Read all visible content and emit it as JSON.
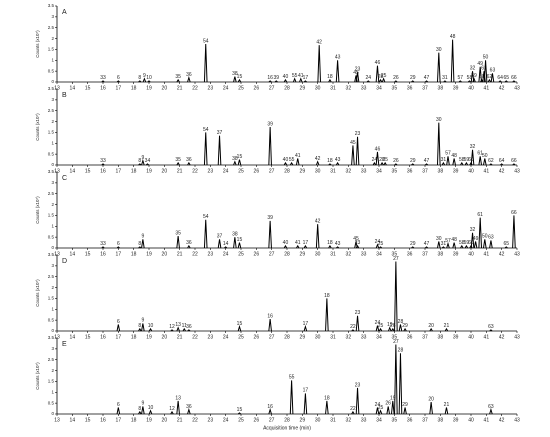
{
  "chart_data": [
    {
      "type": "chromatogram",
      "title": "A",
      "ylabel": "Counts (x10⁷)",
      "xlim": [
        13,
        43
      ],
      "xticks": [
        13,
        14,
        15,
        16,
        17,
        18,
        19,
        20,
        21,
        22,
        23,
        24,
        25,
        26,
        27,
        28,
        29,
        30,
        31,
        32,
        33,
        34,
        35,
        36,
        37,
        38,
        39,
        40,
        41,
        42,
        43
      ],
      "ylim": [
        0,
        3.5
      ],
      "yticks": [
        0,
        0.5,
        1,
        1.5,
        2,
        2.5,
        3,
        3.5
      ],
      "x": [
        16.0,
        17.0,
        18.4,
        18.7,
        19.0,
        20.9,
        21.6,
        22.7,
        24.6,
        24.9,
        26.9,
        27.3,
        27.9,
        28.5,
        28.9,
        29.2,
        30.1,
        30.8,
        31.3,
        32.5,
        32.6,
        33.3,
        33.9,
        34.1,
        34.3,
        35.1,
        36.2,
        37.1,
        37.9,
        38.3,
        38.8,
        39.3,
        39.9,
        40.1,
        40.2,
        40.6,
        40.7,
        40.85,
        40.95,
        41.2,
        41.4,
        41.9,
        42.3,
        42.8
      ],
      "values": [
        0.05,
        0.05,
        0.05,
        0.15,
        0.05,
        0.1,
        0.2,
        1.75,
        0.25,
        0.1,
        0.05,
        0.05,
        0.1,
        0.15,
        0.15,
        0.05,
        1.7,
        0.1,
        1.0,
        0.3,
        0.45,
        0.05,
        0.75,
        0.1,
        0.15,
        0.05,
        0.05,
        0.05,
        1.35,
        0.05,
        1.95,
        0.05,
        0.05,
        0.5,
        0.15,
        0.7,
        0.1,
        0.5,
        1.0,
        0.1,
        0.4,
        0.05,
        0.05,
        0.05
      ],
      "labels": [
        "33",
        "6",
        "8",
        "9",
        "10",
        "35",
        "36",
        "54",
        "38",
        "15",
        "16",
        "39",
        "40",
        "55",
        "41",
        "17",
        "42",
        "18",
        "43",
        "45",
        "23",
        "24",
        "46",
        "28",
        "25",
        "26",
        "29",
        "47",
        "30",
        "31",
        "48",
        "57",
        "58",
        "32",
        "59",
        "49",
        "60",
        "61",
        "50",
        "62",
        "63",
        "64",
        "65",
        "66"
      ]
    },
    {
      "type": "chromatogram",
      "title": "B",
      "ylabel": "Counts (x10⁷)",
      "xlim": [
        13,
        43
      ],
      "xticks": [
        13,
        14,
        15,
        16,
        17,
        18,
        19,
        20,
        21,
        22,
        23,
        24,
        25,
        26,
        27,
        28,
        29,
        30,
        31,
        32,
        33,
        34,
        35,
        36,
        37,
        38,
        39,
        40,
        41,
        42,
        43
      ],
      "ylim": [
        0,
        3.5
      ],
      "yticks": [
        0,
        0.5,
        1,
        1.5,
        2,
        2.5,
        3,
        3.5
      ],
      "x": [
        16.0,
        18.4,
        18.6,
        18.9,
        20.9,
        21.6,
        22.7,
        23.6,
        24.6,
        24.9,
        26.9,
        27.9,
        28.3,
        28.7,
        30.0,
        30.8,
        31.3,
        32.3,
        32.6,
        33.7,
        33.9,
        34.2,
        34.4,
        35.1,
        36.2,
        37.1,
        37.9,
        38.2,
        38.5,
        38.9,
        39.4,
        39.7,
        40.0,
        40.1,
        40.6,
        40.9,
        41.3,
        42.0,
        42.8
      ],
      "values": [
        0.05,
        0.05,
        0.2,
        0.05,
        0.1,
        0.1,
        1.5,
        1.35,
        0.15,
        0.25,
        1.75,
        0.1,
        0.1,
        0.3,
        0.15,
        0.05,
        0.1,
        0.9,
        1.3,
        0.1,
        0.6,
        0.1,
        0.1,
        0.05,
        0.05,
        0.05,
        1.95,
        0.1,
        0.4,
        0.3,
        0.1,
        0.1,
        0.1,
        0.7,
        0.4,
        0.3,
        0.05,
        0.05,
        0.05
      ],
      "labels": [
        "33",
        "8",
        "9",
        "34",
        "35",
        "36",
        "54",
        "37",
        "38",
        "15",
        "39",
        "40",
        "55",
        "41",
        "42",
        "18",
        "43",
        "45",
        "23",
        "24",
        "46",
        "28",
        "25",
        "26",
        "29",
        "47",
        "30",
        "31",
        "57",
        "48",
        "58",
        "59",
        "60",
        "32",
        "61",
        "50",
        "62",
        "64",
        "66"
      ]
    },
    {
      "type": "chromatogram",
      "title": "C",
      "ylabel": "Counts (x10⁷)",
      "xlim": [
        13,
        43
      ],
      "xticks": [
        13,
        14,
        15,
        16,
        17,
        18,
        19,
        20,
        21,
        22,
        23,
        24,
        25,
        26,
        27,
        28,
        29,
        30,
        31,
        32,
        33,
        34,
        35,
        36,
        37,
        38,
        39,
        40,
        41,
        42,
        43
      ],
      "ylim": [
        0,
        3.5
      ],
      "yticks": [
        0,
        0.5,
        1,
        1.5,
        2,
        2.5,
        3,
        3.5
      ],
      "x": [
        16.0,
        17.0,
        18.4,
        18.6,
        20.9,
        21.6,
        22.7,
        23.6,
        24.0,
        24.6,
        24.9,
        26.9,
        27.9,
        28.7,
        29.2,
        30.0,
        30.8,
        31.3,
        32.5,
        32.6,
        33.9,
        34.1,
        36.2,
        37.1,
        37.9,
        38.2,
        38.5,
        38.9,
        39.4,
        39.7,
        40.0,
        40.1,
        40.3,
        40.6,
        40.9,
        41.3,
        42.3,
        42.8
      ],
      "values": [
        0.05,
        0.05,
        0.05,
        0.4,
        0.55,
        0.1,
        1.3,
        0.4,
        0.05,
        0.5,
        0.25,
        1.25,
        0.1,
        0.1,
        0.1,
        1.1,
        0.1,
        0.05,
        0.3,
        0.1,
        0.15,
        0.05,
        0.05,
        0.05,
        0.3,
        0.05,
        0.2,
        0.25,
        0.1,
        0.1,
        0.1,
        0.7,
        0.3,
        1.4,
        0.4,
        0.35,
        0.05,
        1.5
      ],
      "labels": [
        "33",
        "6",
        "8",
        "9",
        "35",
        "36",
        "54",
        "37",
        "14",
        "38",
        "15",
        "39",
        "40",
        "41",
        "17",
        "42",
        "18",
        "43",
        "45",
        "23",
        "24",
        "25",
        "29",
        "47",
        "30",
        "31",
        "57",
        "48",
        "58",
        "59",
        "60",
        "32",
        "49",
        "61",
        "50",
        "63",
        "65",
        "66"
      ]
    },
    {
      "type": "chromatogram",
      "title": "D",
      "ylabel": "Counts (x10⁷)",
      "xlim": [
        13,
        43
      ],
      "xticks": [
        13,
        14,
        15,
        16,
        17,
        18,
        19,
        20,
        21,
        22,
        23,
        24,
        25,
        26,
        27,
        28,
        29,
        30,
        31,
        32,
        33,
        34,
        35,
        36,
        37,
        38,
        39,
        40,
        41,
        42,
        43
      ],
      "ylim": [
        0,
        3.5
      ],
      "yticks": [
        0,
        0.5,
        1,
        1.5,
        2,
        2.5,
        3,
        3.5
      ],
      "x": [
        17.0,
        18.4,
        18.6,
        19.1,
        20.5,
        20.9,
        21.3,
        21.6,
        24.9,
        26.9,
        29.2,
        30.6,
        32.3,
        32.6,
        33.9,
        34.1,
        34.7,
        34.9,
        35.1,
        35.4,
        35.7,
        37.4,
        38.4,
        41.3
      ],
      "values": [
        0.3,
        0.1,
        0.35,
        0.1,
        0.05,
        0.15,
        0.1,
        0.05,
        0.2,
        0.55,
        0.2,
        1.5,
        0.05,
        0.7,
        0.25,
        0.1,
        0.15,
        0.1,
        3.2,
        0.3,
        0.1,
        0.1,
        0.1,
        0.05
      ],
      "labels": [
        "6",
        "8",
        "9",
        "10",
        "12",
        "13",
        "11",
        "36",
        "15",
        "16",
        "17",
        "18",
        "22",
        "23",
        "24",
        "25",
        "19",
        "26",
        "27",
        "28",
        "29",
        "20",
        "21",
        "63"
      ]
    },
    {
      "type": "chromatogram",
      "title": "E",
      "ylabel": "Counts (x10⁷)",
      "xlabel": "Acquisition time (min)",
      "xlim": [
        13,
        43
      ],
      "xticks": [
        13,
        14,
        15,
        16,
        17,
        18,
        19,
        20,
        21,
        22,
        23,
        24,
        25,
        26,
        27,
        28,
        29,
        30,
        31,
        32,
        33,
        34,
        35,
        36,
        37,
        38,
        39,
        40,
        41,
        42,
        43
      ],
      "ylim": [
        0,
        3.5
      ],
      "yticks": [
        0,
        0.5,
        1,
        1.5,
        2,
        2.5,
        3,
        3.5
      ],
      "x": [
        17.0,
        18.4,
        18.6,
        19.1,
        20.5,
        20.9,
        21.6,
        24.9,
        26.9,
        28.3,
        29.2,
        30.6,
        32.3,
        32.6,
        33.9,
        34.1,
        34.6,
        34.9,
        35.1,
        35.4,
        35.7,
        37.4,
        38.4,
        41.3
      ],
      "values": [
        0.3,
        0.1,
        0.35,
        0.15,
        0.1,
        0.6,
        0.2,
        0.05,
        0.2,
        1.55,
        0.95,
        0.6,
        0.1,
        1.2,
        0.3,
        0.15,
        0.35,
        0.6,
        3.2,
        2.8,
        0.3,
        0.55,
        0.3,
        0.2
      ],
      "labels": [
        "6",
        "8",
        "9",
        "10",
        "12",
        "13",
        "36",
        "15",
        "16",
        "55",
        "17",
        "18",
        "22",
        "23",
        "24",
        "25",
        "26",
        "19",
        "27",
        "28",
        "29",
        "20",
        "21",
        "63"
      ]
    }
  ]
}
